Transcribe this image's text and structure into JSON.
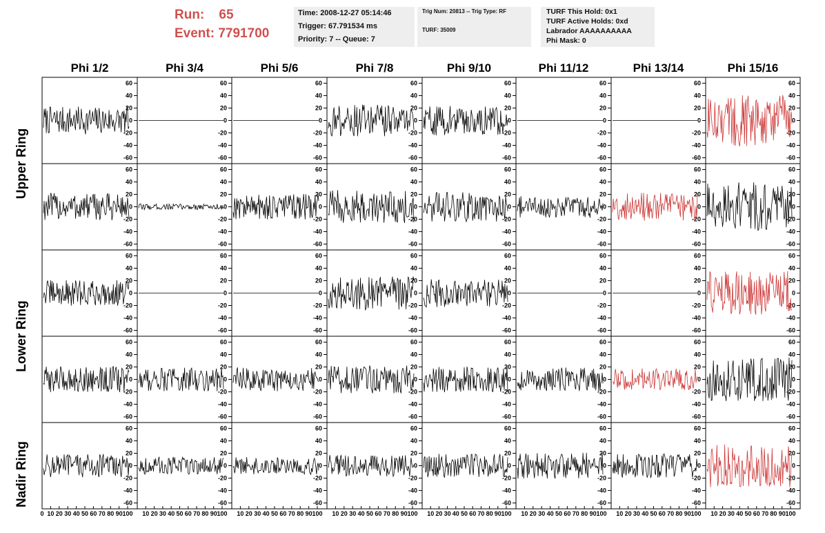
{
  "header": {
    "run_label": "Run:",
    "run_value": "65",
    "event_label": "Event:",
    "event_value": "7791700",
    "accent_color": "#d05050"
  },
  "info_time": {
    "time": "Time: 2008-12-27 05:14:46",
    "trigger": "Trigger: 67.791534 ms",
    "priority": "Priority: 7 -- Queue: 7"
  },
  "info_trig": {
    "trig": "Trig Num: 20813 -- Trig Type: RF",
    "turf": "TURF: 35009"
  },
  "info_turf": {
    "this_hold": "TURF This Hold: 0x1",
    "active_holds": "TURF Active Holds: 0xd",
    "labrador": "Labrador AAAAAAAAAA",
    "phi_mask": "Phi Mask: 0"
  },
  "chart_data": {
    "type": "line",
    "columns": [
      "Phi 1/2",
      "Phi 3/4",
      "Phi 5/6",
      "Phi 7/8",
      "Phi 9/10",
      "Phi 11/12",
      "Phi 13/14",
      "Phi 15/16"
    ],
    "ring_labels": [
      "Upper Ring",
      "Lower Ring",
      "Nadir Ring"
    ],
    "ylim": [
      -65,
      65
    ],
    "xlim": [
      0,
      100
    ],
    "y_ticks": [
      60,
      40,
      20,
      0,
      -20,
      -40,
      -60
    ],
    "x_tick_labels_first": [
      "0",
      "10",
      "20",
      "30",
      "40",
      "50",
      "60",
      "70",
      "80",
      "90",
      "100"
    ],
    "x_tick_labels": [
      "10",
      "20",
      "30",
      "40",
      "50",
      "60",
      "70",
      "80",
      "90",
      "100"
    ],
    "trace_color_default": "#000000",
    "trace_color_triggered": "#cc3333",
    "panels": [
      [
        {
          "amp": 14,
          "color": "black"
        },
        {
          "amp": 0,
          "color": "black"
        },
        {
          "amp": 0,
          "color": "black"
        },
        {
          "amp": 16,
          "color": "black"
        },
        {
          "amp": 15,
          "color": "black"
        },
        {
          "amp": 0,
          "color": "black"
        },
        {
          "amp": 0,
          "color": "black"
        },
        {
          "amp": 26,
          "color": "red"
        }
      ],
      [
        {
          "amp": 14,
          "color": "black"
        },
        {
          "amp": 3,
          "color": "black"
        },
        {
          "amp": 13,
          "color": "black"
        },
        {
          "amp": 17,
          "color": "black"
        },
        {
          "amp": 15,
          "color": "black"
        },
        {
          "amp": 11,
          "color": "black"
        },
        {
          "amp": 14,
          "color": "red"
        },
        {
          "amp": 25,
          "color": "black"
        }
      ],
      [
        {
          "amp": 13,
          "color": "black"
        },
        {
          "amp": 0,
          "color": "black"
        },
        {
          "amp": 0,
          "color": "black"
        },
        {
          "amp": 17,
          "color": "black"
        },
        {
          "amp": 14,
          "color": "black"
        },
        {
          "amp": 0,
          "color": "black"
        },
        {
          "amp": 0,
          "color": "black"
        },
        {
          "amp": 22,
          "color": "red"
        }
      ],
      [
        {
          "amp": 13,
          "color": "black"
        },
        {
          "amp": 12,
          "color": "black"
        },
        {
          "amp": 12,
          "color": "black"
        },
        {
          "amp": 14,
          "color": "black"
        },
        {
          "amp": 13,
          "color": "black"
        },
        {
          "amp": 12,
          "color": "black"
        },
        {
          "amp": 11,
          "color": "red"
        },
        {
          "amp": 22,
          "color": "black"
        }
      ],
      [
        {
          "amp": 12,
          "color": "black"
        },
        {
          "amp": 9,
          "color": "black"
        },
        {
          "amp": 9,
          "color": "black"
        },
        {
          "amp": 11,
          "color": "black"
        },
        {
          "amp": 12,
          "color": "black"
        },
        {
          "amp": 13,
          "color": "black"
        },
        {
          "amp": 12,
          "color": "black"
        },
        {
          "amp": 22,
          "color": "red"
        }
      ]
    ]
  }
}
